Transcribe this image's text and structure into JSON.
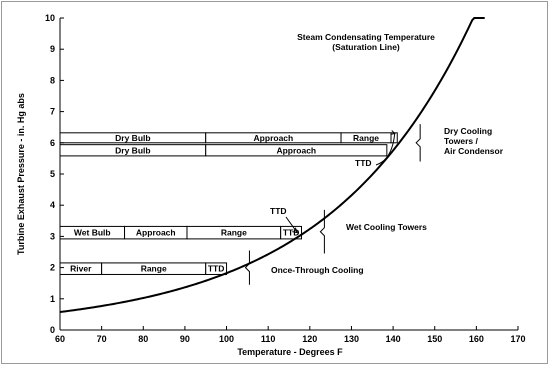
{
  "chart_data": {
    "type": "line",
    "xlabel": "Temperature - Degrees F",
    "ylabel": "Turbine Exhaust Pressure - in. Hg abs",
    "xlim": [
      60,
      170
    ],
    "ylim": [
      0,
      10
    ],
    "x_ticks": [
      "60",
      "70",
      "80",
      "90",
      "100",
      "110",
      "120",
      "130",
      "140",
      "150",
      "160",
      "170"
    ],
    "y_ticks": [
      "0",
      "1",
      "2",
      "3",
      "4",
      "5",
      "6",
      "7",
      "8",
      "9",
      "10"
    ],
    "grid": false,
    "series": [
      {
        "name": "Steam Condensating Temperature (Saturation Line)",
        "x": [
          60,
          70,
          80,
          90,
          100,
          110,
          120,
          130,
          140,
          150,
          160,
          162
        ],
        "y": [
          0.52,
          0.74,
          1.03,
          1.42,
          1.93,
          2.59,
          3.44,
          4.52,
          5.88,
          7.57,
          9.65,
          10.0
        ]
      }
    ],
    "annotations": [
      {
        "id": "saturation",
        "lines": [
          "Steam Condensating Temperature",
          "(Saturation Line)"
        ]
      },
      {
        "id": "dry_towers",
        "lines": [
          "Dry Cooling",
          "Towers /",
          "Air Condensor"
        ]
      },
      {
        "id": "wet_towers",
        "lines": [
          "Wet Cooling Towers"
        ]
      },
      {
        "id": "once_through",
        "lines": [
          "Once-Through Cooling"
        ]
      },
      {
        "id": "ttd_dry",
        "lines": [
          "TTD"
        ]
      },
      {
        "id": "ttd_wet",
        "lines": [
          "TTD"
        ]
      }
    ],
    "segment_bars": [
      {
        "id": "dry_1",
        "y_bottom": 6.0,
        "y_top": 6.32,
        "segments": [
          {
            "label": "Dry Bulb",
            "x0": 60,
            "x1": 95
          },
          {
            "label": "Approach",
            "x0": 95,
            "x1": 127.5
          },
          {
            "label": "Range",
            "x0": 127.5,
            "x1": 139.5
          },
          {
            "label": "TTD",
            "x0": 139.5,
            "x1": 141
          }
        ]
      },
      {
        "id": "dry_2",
        "y_bottom": 5.58,
        "y_top": 5.94,
        "segments": [
          {
            "label": "Dry Bulb",
            "x0": 60,
            "x1": 95
          },
          {
            "label": "Approach",
            "x0": 95,
            "x1": 138.5
          }
        ]
      },
      {
        "id": "wet",
        "y_bottom": 2.92,
        "y_top": 3.32,
        "segments": [
          {
            "label": "Wet Bulb",
            "x0": 60,
            "x1": 75.5
          },
          {
            "label": "Approach",
            "x0": 75.5,
            "x1": 90.5
          },
          {
            "label": "Range",
            "x0": 90.5,
            "x1": 113
          },
          {
            "label": "TTD",
            "x0": 113,
            "x1": 118
          }
        ]
      },
      {
        "id": "once",
        "y_bottom": 1.78,
        "y_top": 2.15,
        "segments": [
          {
            "label": "River",
            "x0": 60,
            "x1": 70
          },
          {
            "label": "Range",
            "x0": 70,
            "x1": 95
          },
          {
            "label": "TTD",
            "x0": 95,
            "x1": 100
          }
        ]
      }
    ]
  }
}
